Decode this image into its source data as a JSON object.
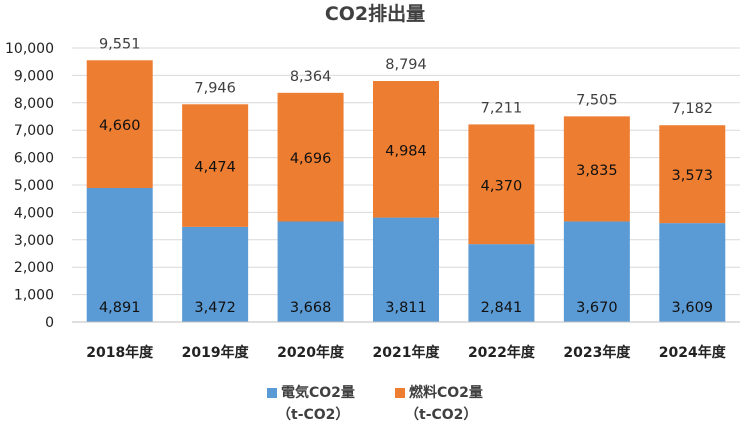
{
  "chart_data": {
    "type": "bar",
    "stacked": true,
    "title": "CO2排出量",
    "categories": [
      "2018年度",
      "2019年度",
      "2020年度",
      "2021年度",
      "2022年度",
      "2023年度",
      "2024年度"
    ],
    "series": [
      {
        "name": "電気CO2量",
        "unit": "（t-CO2）",
        "color": "#5B9BD5",
        "values": [
          4891,
          3472,
          3668,
          3811,
          2841,
          3670,
          3609
        ]
      },
      {
        "name": "燃料CO2量",
        "unit": "（t-CO2）",
        "color": "#ED7D31",
        "values": [
          4660,
          4474,
          4696,
          4984,
          4370,
          3835,
          3573
        ]
      }
    ],
    "totals": [
      9551,
      7946,
      8364,
      8794,
      7211,
      7505,
      7182
    ],
    "ylim": [
      0,
      10000
    ],
    "yticks": [
      0,
      1000,
      2000,
      3000,
      4000,
      5000,
      6000,
      7000,
      8000,
      9000,
      10000
    ],
    "grid": true,
    "legend_position": "bottom"
  }
}
